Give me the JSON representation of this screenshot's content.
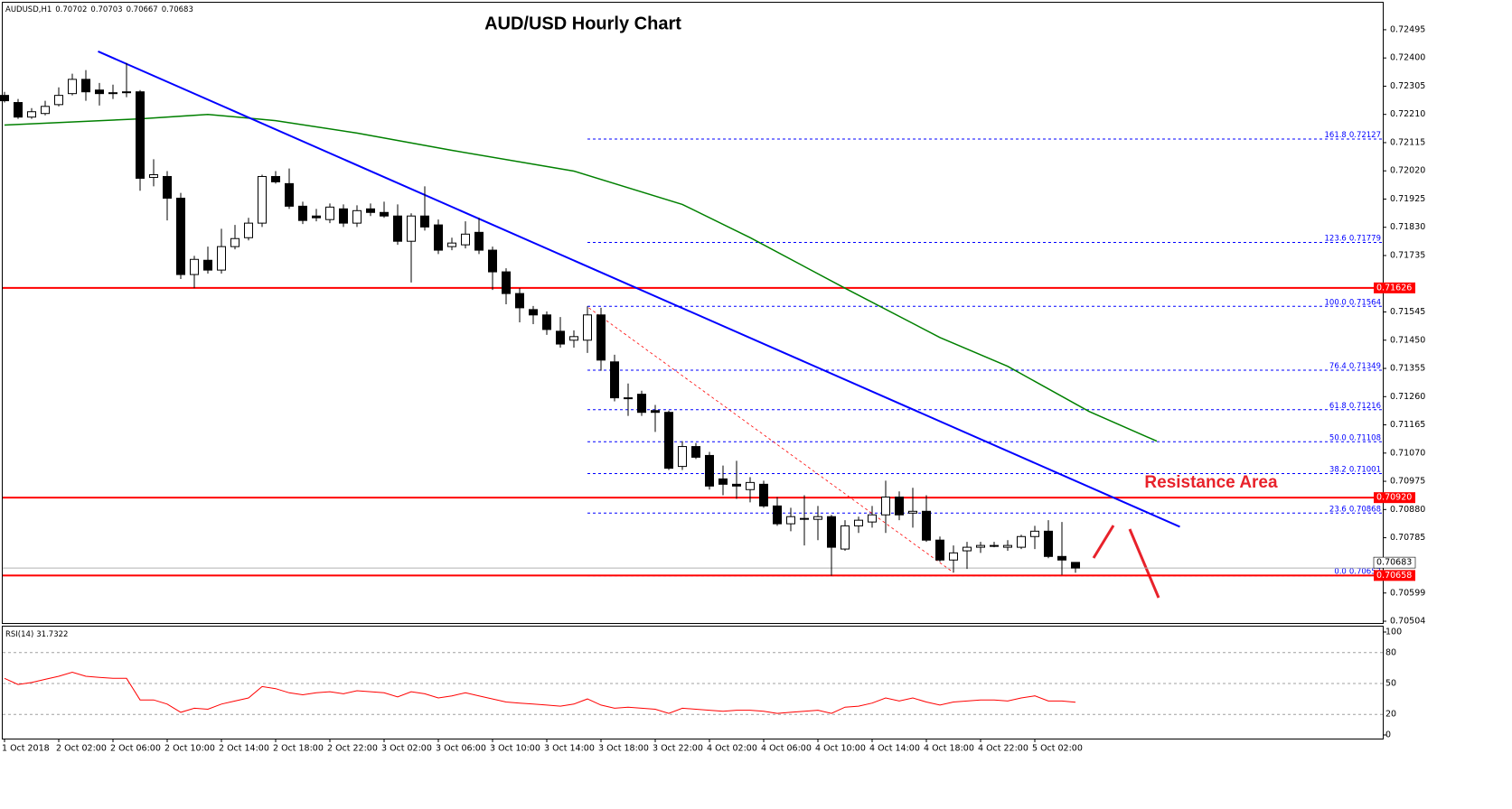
{
  "chart_data": [
    {
      "type": "candlestick",
      "title": "AUD/USD Hourly Chart",
      "symbol": "AUDUSD,H1",
      "categories": [
        "1 Oct 2018",
        null,
        null,
        null,
        "2 Oct 02:00",
        null,
        null,
        null,
        "2 Oct 06:00",
        null,
        null,
        null,
        "2 Oct 10:00",
        null,
        null,
        null,
        "2 Oct 14:00",
        null,
        null,
        null,
        "2 Oct 18:00",
        null,
        null,
        null,
        "2 Oct 22:00",
        null,
        null,
        null,
        "3 Oct 02:00",
        null,
        null,
        null,
        "3 Oct 06:00",
        null,
        null,
        null,
        "3 Oct 10:00",
        null,
        null,
        null,
        "3 Oct 14:00",
        null,
        null,
        null,
        "3 Oct 18:00",
        null,
        null,
        null,
        "3 Oct 22:00",
        null,
        null,
        null,
        "4 Oct 02:00",
        null,
        null,
        null,
        "4 Oct 06:00",
        null,
        null,
        null,
        "4 Oct 10:00",
        null,
        null,
        null,
        "4 Oct 14:00",
        null,
        null,
        null,
        "4 Oct 18:00",
        null,
        null,
        null,
        "4 Oct 22:00",
        null,
        null,
        null,
        "5 Oct 02:00",
        null,
        null,
        null
      ],
      "open": [
        0.72274,
        0.7225,
        0.72201,
        0.72213,
        0.72243,
        0.7228,
        0.72328,
        0.72292,
        0.7228,
        0.72283,
        0.72286,
        0.71998,
        0.72001,
        0.71928,
        0.71671,
        0.71719,
        0.71686,
        0.71765,
        0.71795,
        0.71844,
        0.72001,
        0.71977,
        0.71901,
        0.71868,
        0.71856,
        0.71892,
        0.71844,
        0.71892,
        0.7188,
        0.71868,
        0.71783,
        0.71868,
        0.71838,
        0.71765,
        0.71771,
        0.71813,
        0.71753,
        0.7168,
        0.71607,
        0.71553,
        0.71535,
        0.7148,
        0.7145,
        0.7145,
        0.71535,
        0.71377,
        0.71256,
        0.71268,
        0.71213,
        0.71207,
        0.71025,
        0.71092,
        0.71062,
        0.70983,
        0.70965,
        0.70947,
        0.70965,
        0.70892,
        0.70832,
        0.7085,
        0.70847,
        0.70856,
        0.70747,
        0.70825,
        0.70838,
        0.70862,
        0.70922,
        0.70868,
        0.70874,
        0.70777,
        0.7071,
        0.70741,
        0.70753,
        0.70759,
        0.70753,
        0.70753,
        0.70789,
        0.70807,
        0.70722,
        0.70702
      ],
      "high": [
        0.72286,
        0.72262,
        0.72231,
        0.72256,
        0.72301,
        0.72347,
        0.72359,
        0.72316,
        0.7231,
        0.72383,
        0.72292,
        0.72059,
        0.72019,
        0.71946,
        0.71734,
        0.71765,
        0.71825,
        0.71838,
        0.71862,
        0.72007,
        0.72019,
        0.72028,
        0.71916,
        0.71892,
        0.7191,
        0.71907,
        0.71904,
        0.7191,
        0.71916,
        0.71907,
        0.71877,
        0.71968,
        0.71856,
        0.71795,
        0.7185,
        0.71862,
        0.71765,
        0.71692,
        0.71625,
        0.71565,
        0.71547,
        0.71528,
        0.71483,
        0.71564,
        0.71559,
        0.71401,
        0.71304,
        0.7128,
        0.71232,
        0.71213,
        0.7111,
        0.71104,
        0.71074,
        0.71028,
        0.71044,
        0.70989,
        0.70977,
        0.70922,
        0.70886,
        0.70928,
        0.70892,
        0.70862,
        0.70844,
        0.70856,
        0.70892,
        0.70977,
        0.70941,
        0.70953,
        0.70928,
        0.70789,
        0.70759,
        0.70771,
        0.70771,
        0.70771,
        0.70777,
        0.70795,
        0.70825,
        0.70844,
        0.70838,
        0.70703
      ],
      "low": [
        0.7225,
        0.72195,
        0.72195,
        0.72207,
        0.72237,
        0.72274,
        0.72256,
        0.7224,
        0.72262,
        0.72268,
        0.71953,
        0.71968,
        0.71853,
        0.71656,
        0.71625,
        0.71674,
        0.71674,
        0.71756,
        0.71786,
        0.71831,
        0.71977,
        0.71892,
        0.71841,
        0.7185,
        0.71844,
        0.71831,
        0.71831,
        0.71868,
        0.71862,
        0.71771,
        0.71644,
        0.71819,
        0.7174,
        0.71753,
        0.71759,
        0.7174,
        0.71619,
        0.71571,
        0.7151,
        0.71504,
        0.71468,
        0.71425,
        0.71425,
        0.71407,
        0.71347,
        0.71244,
        0.71195,
        0.71195,
        0.71141,
        0.71013,
        0.71013,
        0.7105,
        0.70947,
        0.70928,
        0.70916,
        0.70904,
        0.70886,
        0.70825,
        0.70807,
        0.70759,
        0.70777,
        0.70657,
        0.70741,
        0.70801,
        0.70819,
        0.70801,
        0.70844,
        0.70819,
        0.70771,
        0.70704,
        0.70668,
        0.7068,
        0.70734,
        0.70753,
        0.70741,
        0.70747,
        0.70747,
        0.70716,
        0.7066,
        0.70667
      ],
      "close": [
        0.72256,
        0.72201,
        0.72219,
        0.72237,
        0.72274,
        0.72328,
        0.72286,
        0.7228,
        0.72283,
        0.72286,
        0.71995,
        0.72007,
        0.71928,
        0.71671,
        0.71722,
        0.71686,
        0.71765,
        0.71792,
        0.71844,
        0.72001,
        0.71983,
        0.71901,
        0.71853,
        0.71862,
        0.71898,
        0.71844,
        0.71886,
        0.7188,
        0.71868,
        0.71783,
        0.71868,
        0.71831,
        0.71753,
        0.71777,
        0.71807,
        0.71753,
        0.7168,
        0.71607,
        0.71559,
        0.71535,
        0.71486,
        0.71437,
        0.71462,
        0.71535,
        0.71383,
        0.71256,
        0.71253,
        0.71207,
        0.71207,
        0.71019,
        0.71092,
        0.71056,
        0.70959,
        0.70965,
        0.70959,
        0.70971,
        0.70892,
        0.70832,
        0.70856,
        0.7085,
        0.70856,
        0.70753,
        0.70825,
        0.70844,
        0.70862,
        0.70922,
        0.70862,
        0.70874,
        0.70777,
        0.7071,
        0.70734,
        0.70753,
        0.70759,
        0.70759,
        0.70759,
        0.70789,
        0.70807,
        0.70722,
        0.7071,
        0.70683
      ],
      "bull_color": "#ffffff",
      "bear_color": "#000000",
      "ylim": [
        0.70498,
        0.72589
      ],
      "yticks": [
        0.72495,
        {
          "value": 0.724,
          "label": "0.72400"
        },
        0.72305,
        {
          "value": 0.7221,
          "label": "0.72210"
        },
        0.72115,
        {
          "value": 0.7202,
          "label": "0.72020"
        },
        0.71925,
        {
          "value": 0.7183,
          "label": "0.71830"
        },
        0.71735,
        0.71545,
        {
          "value": 0.7145,
          "label": "0.71450"
        },
        0.71355,
        {
          "value": 0.7126,
          "label": "0.71260"
        },
        0.71165,
        {
          "value": 0.7107,
          "label": "0.71070"
        },
        0.70975,
        {
          "value": 0.7088,
          "label": "0.70880"
        },
        0.70785,
        0.70599,
        0.70504
      ],
      "moving_average": {
        "color": "#008000",
        "x": [
          0,
          10,
          15,
          20,
          26,
          33,
          42,
          50,
          55,
          62,
          69,
          74,
          80,
          85
        ],
        "values": [
          0.72174,
          0.72195,
          0.7221,
          0.72189,
          0.72147,
          0.72089,
          0.72019,
          0.71907,
          0.71795,
          0.71625,
          0.71459,
          0.71362,
          0.7121,
          0.7111
        ]
      },
      "trendline": {
        "color": "#0000ff",
        "x": [
          6.9,
          86.7
        ],
        "values": [
          0.72422,
          0.70822
        ]
      },
      "projection": {
        "color": "#ff0000",
        "x": [
          43.1,
          70
        ],
        "values": [
          0.71559,
          0.70668
        ]
      },
      "hlines": [
        {
          "value": 0.71626,
          "color": "#ff0000"
        },
        {
          "value": 0.7092,
          "label": "0.70920",
          "color": "#ff0000"
        },
        {
          "value": 0.70658,
          "color": "#ff0000"
        }
      ],
      "fib": {
        "color": "#0000ff",
        "levels": [
          {
            "level": "161.8",
            "value": 0.72127
          },
          {
            "level": "123.6",
            "value": 0.71779
          },
          {
            "level": "100.0",
            "value": 0.71564
          },
          {
            "level": "76.4",
            "value": 0.71349
          },
          {
            "level": "61.8",
            "value": 0.71216
          },
          {
            "level": "50.0",
            "value": 0.71108
          },
          {
            "level": "38.2",
            "value": 0.71001
          },
          {
            "level": "23.6",
            "value": 0.70868
          },
          {
            "level": "0.0",
            "value": 0.70657
          }
        ]
      },
      "annotation": "Resistance Area",
      "annotation_color": "#e8222b"
    },
    {
      "type": "line",
      "title": "RSI(14)",
      "color": "#ff0000",
      "values": [
        55,
        49,
        51,
        54,
        57,
        61,
        57,
        56,
        55,
        55,
        34,
        34,
        30,
        22,
        26,
        25,
        30,
        33,
        36,
        47,
        45,
        41,
        39,
        41,
        42,
        40,
        43,
        42,
        41,
        37,
        42,
        40,
        36,
        38,
        41,
        38,
        35,
        32,
        31,
        30,
        29,
        28,
        30,
        35,
        29,
        26,
        27,
        26,
        25,
        21,
        26,
        25,
        24,
        23,
        24,
        24,
        23,
        21,
        22,
        23,
        24,
        21,
        27,
        28,
        31,
        36,
        33,
        36,
        32,
        29,
        32,
        33,
        34,
        34,
        33,
        36,
        38,
        33,
        33,
        31.7322
      ],
      "ylim": [
        0,
        100
      ],
      "yticks": [
        0,
        20,
        50,
        80,
        100
      ]
    }
  ]
}
